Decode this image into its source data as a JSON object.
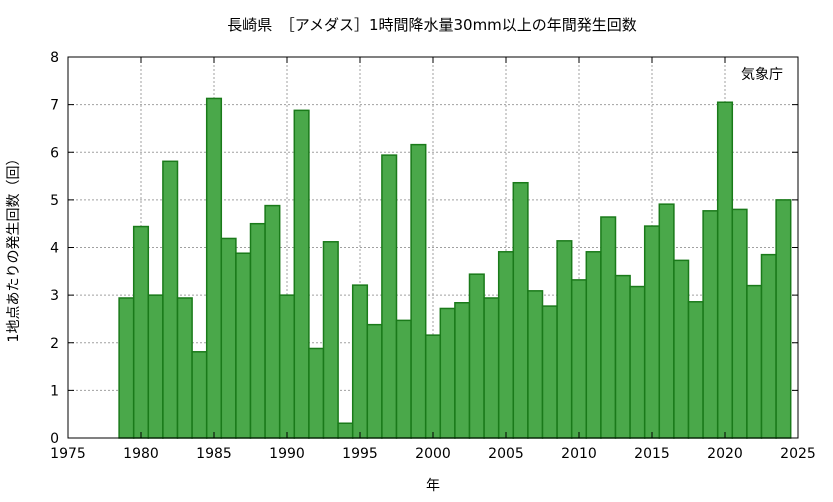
{
  "chart_data": {
    "type": "bar",
    "title": "長崎県　［アメダス］1時間降水量30mm以上の年間発生回数",
    "xlabel": "年",
    "ylabel": "1地点あたりの発生回数（回）",
    "credit": "気象庁",
    "xlim": [
      1975,
      2025
    ],
    "ylim": [
      0,
      8
    ],
    "xticks": [
      1975,
      1980,
      1985,
      1990,
      1995,
      2000,
      2005,
      2010,
      2015,
      2020,
      2025
    ],
    "yticks": [
      0,
      1,
      2,
      3,
      4,
      5,
      6,
      7,
      8
    ],
    "grid": true,
    "bar_color": "#4aa84a",
    "bar_edge_color": "#1a7a1a",
    "x": [
      1979,
      1980,
      1981,
      1982,
      1983,
      1984,
      1985,
      1986,
      1987,
      1988,
      1989,
      1990,
      1991,
      1992,
      1993,
      1994,
      1995,
      1996,
      1997,
      1998,
      1999,
      2000,
      2001,
      2002,
      2003,
      2004,
      2005,
      2006,
      2007,
      2008,
      2009,
      2010,
      2011,
      2012,
      2013,
      2014,
      2015,
      2016,
      2017,
      2018,
      2019,
      2020,
      2021,
      2022,
      2023,
      2024
    ],
    "values": [
      2.94,
      4.44,
      3.0,
      5.81,
      2.94,
      1.81,
      7.13,
      4.19,
      3.88,
      4.5,
      4.88,
      3.0,
      6.88,
      1.88,
      4.12,
      0.31,
      3.21,
      2.38,
      5.94,
      2.47,
      6.16,
      2.16,
      2.72,
      2.84,
      3.44,
      2.94,
      3.91,
      5.36,
      3.09,
      2.77,
      4.14,
      3.32,
      3.91,
      4.64,
      3.41,
      3.18,
      4.45,
      4.91,
      3.73,
      2.86,
      4.77,
      7.05,
      4.8,
      3.2,
      3.85,
      5.0
    ]
  }
}
